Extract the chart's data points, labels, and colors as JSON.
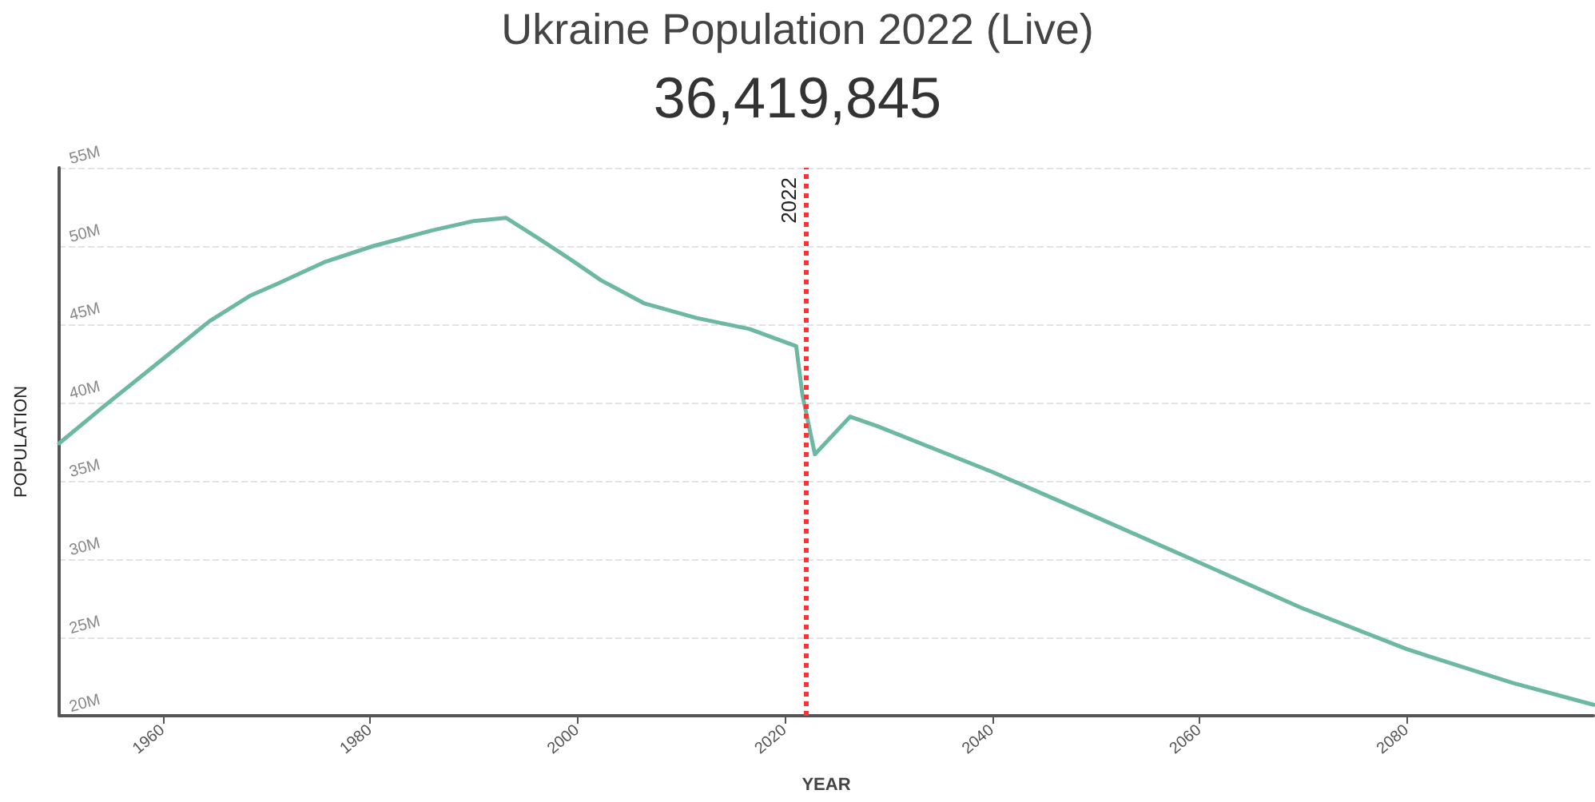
{
  "chart_data": {
    "type": "line",
    "title": "Ukraine Population 2022 (Live)",
    "subtitle": "36,419,845",
    "xlabel": "YEAR",
    "ylabel": "POPULATION",
    "x": [
      1950,
      1954.2,
      1960.4,
      1964.5,
      1968.5,
      1971.1,
      1975.7,
      1980.3,
      1986,
      1990,
      1993.1,
      1996.2,
      1999.2,
      2002.3,
      2006.4,
      2011.5,
      2016.6,
      2021.1,
      2021.7,
      2022.9,
      2026.3,
      2028.9,
      2040.1,
      2049.3,
      2059.6,
      2069.8,
      2080,
      2090.2,
      2098
    ],
    "series": [
      {
        "color": "#6cb8a2",
        "values": [
          37.4,
          39.7,
          43.0,
          45.2,
          46.85,
          47.6,
          49.0,
          50.0,
          51.0,
          51.6,
          51.8,
          50.5,
          49.2,
          47.8,
          46.35,
          45.4,
          44.7,
          43.6,
          40.5,
          36.7,
          39.1,
          38.5,
          35.55,
          32.9,
          29.9,
          26.9,
          24.25,
          22.1,
          20.7
        ]
      }
    ],
    "xlim": [
      1950,
      2098
    ],
    "xticks": [
      1960,
      1980,
      2000,
      2020,
      2040,
      2060,
      2080
    ],
    "ylim": [
      20,
      55
    ],
    "yticks": [
      {
        "value": 20,
        "label": "20M"
      },
      {
        "value": 25,
        "label": "25M"
      },
      {
        "value": 30,
        "label": "30M"
      },
      {
        "value": 35,
        "label": "35M"
      },
      {
        "value": 40,
        "label": "40M"
      },
      {
        "value": 45,
        "label": "45M"
      },
      {
        "value": 50,
        "label": "50M"
      },
      {
        "value": 55,
        "label": "55M"
      }
    ],
    "ref_lines": [
      {
        "axis": "x",
        "value": 2022,
        "label": "2022",
        "color": "#ff3333",
        "line_style": "dotted"
      }
    ],
    "grid": "y",
    "marker": "none",
    "line_style": "solid"
  }
}
